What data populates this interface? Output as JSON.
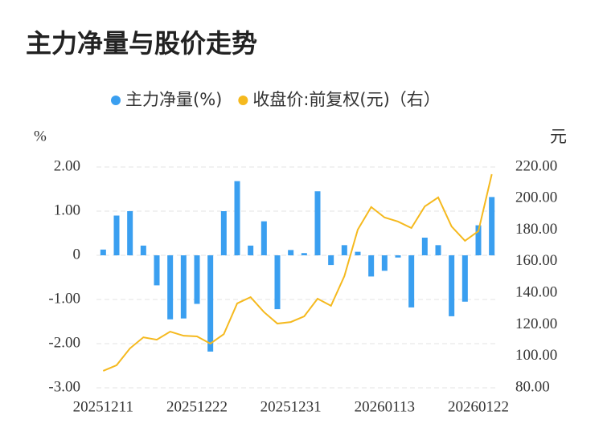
{
  "chart_data": {
    "type": "bar_line",
    "title": "主力净量与股价走势",
    "y_unit": "%",
    "y2_unit": "元",
    "categories": [
      "20251211",
      null,
      null,
      null,
      null,
      null,
      null,
      "20251222",
      null,
      null,
      null,
      null,
      null,
      null,
      "20251231",
      null,
      null,
      null,
      null,
      null,
      null,
      "20260113",
      null,
      null,
      null,
      null,
      null,
      null,
      "20260122",
      null
    ],
    "series": [
      {
        "name": "主力净量(%)",
        "type": "bar",
        "color": "#3a9ff0",
        "axis": "y",
        "values": [
          0.13,
          0.9,
          1.0,
          0.22,
          -0.68,
          -1.45,
          -1.43,
          -1.1,
          -2.18,
          1.0,
          1.68,
          0.22,
          0.77,
          -1.22,
          0.12,
          0.05,
          1.45,
          -0.22,
          0.23,
          0.08,
          -0.48,
          -0.35,
          -0.05,
          -1.18,
          0.4,
          0.23,
          -1.38,
          -1.05,
          0.68,
          1.32
        ]
      },
      {
        "name": "收盘价:前复权(元)（右）",
        "type": "line",
        "color": "#f5b91e",
        "axis": "y2",
        "values": [
          90.7,
          94.3,
          105,
          112,
          110.5,
          115.6,
          113,
          112.6,
          108,
          114,
          133.5,
          137.5,
          128,
          120.7,
          121.7,
          125.3,
          136.5,
          132,
          150.8,
          180.3,
          194.6,
          188,
          185.4,
          181.3,
          195,
          200.7,
          182.3,
          173.2,
          179.3,
          215.4
        ]
      }
    ],
    "ylim": [
      -3,
      2
    ],
    "yticks": [
      {
        "value": -3,
        "label": "-3.00"
      },
      {
        "value": -2,
        "label": "-2.00"
      },
      {
        "value": -1,
        "label": "-1.00"
      },
      0,
      {
        "value": 1,
        "label": "1.00"
      },
      {
        "value": 2,
        "label": "2.00"
      }
    ],
    "y2lim": [
      80,
      220
    ],
    "y2ticks": [
      {
        "value": 80,
        "label": "80.00"
      },
      {
        "value": 100,
        "label": "100.00"
      },
      {
        "value": 120,
        "label": "120.00"
      },
      {
        "value": 140,
        "label": "140.00"
      },
      {
        "value": 160,
        "label": "160.00"
      },
      {
        "value": 180,
        "label": "180.00"
      },
      {
        "value": 200,
        "label": "200.00"
      },
      {
        "value": 220,
        "label": "220.00"
      }
    ],
    "grid": true,
    "legend": "top"
  }
}
